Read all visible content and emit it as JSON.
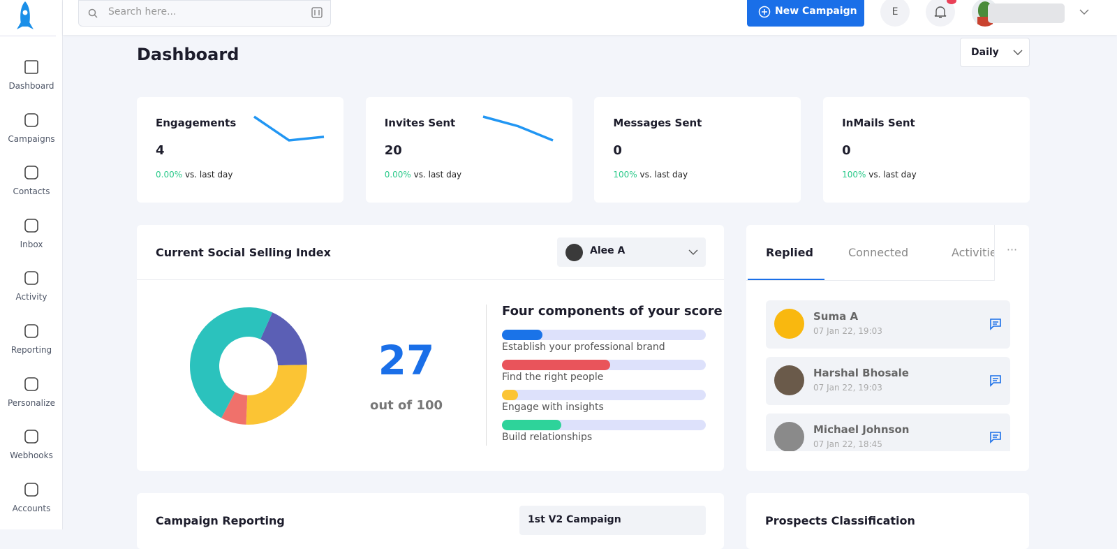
{
  "sidebar": {
    "items": [
      "Dashboard",
      "Campaigns",
      "Contacts",
      "Inbox",
      "Activity",
      "Reporting",
      "Personalize",
      "Webhooks",
      "Accounts"
    ]
  },
  "header": {
    "search_placeholder": "Search here...",
    "new_campaign": "New Campaign",
    "avatar_letter": "E"
  },
  "page": {
    "title": "Dashboard",
    "period": "Daily"
  },
  "stats": [
    {
      "title": "Engagements",
      "value": 4,
      "change": "0.00%",
      "change_label": "vs. last day",
      "trend": [
        3,
        1,
        1.3
      ]
    },
    {
      "title": "Invites Sent",
      "value": 20,
      "change": "0.00%",
      "change_label": "vs. last day",
      "trend": [
        3,
        2.2,
        1
      ]
    },
    {
      "title": "Messages Sent",
      "value": 0,
      "change": "100%",
      "change_label": "vs. last day"
    },
    {
      "title": "InMails Sent",
      "value": 0,
      "change": "100%",
      "change_label": "vs. last day"
    }
  ],
  "ssi": {
    "title": "Current Social Selling Index",
    "profile": "Alee A",
    "score": 27,
    "score_label": "out of 100",
    "donut": [
      {
        "color": "#5b5fb5",
        "value": 18
      },
      {
        "color": "#fbc434",
        "value": 26
      },
      {
        "color": "#f0716b",
        "value": 7
      },
      {
        "color": "#2bc2bd",
        "value": 49
      }
    ],
    "components_title": "Four components of your score",
    "components": [
      {
        "name": "Establish your professional brand",
        "color": "#1a73e8",
        "value": 20
      },
      {
        "name": "Find the right people",
        "color": "#e9545b",
        "value": 53
      },
      {
        "name": "Engage with insights",
        "color": "#fbc434",
        "value": 8
      },
      {
        "name": "Build relationships",
        "color": "#2ed39a",
        "value": 29
      }
    ]
  },
  "activity": {
    "tabs": [
      "Replied",
      "Connected",
      "Activities"
    ],
    "items": [
      {
        "name": "Suma A",
        "time": "07 Jan 22, 19:03"
      },
      {
        "name": "Harshal Bhosale",
        "time": "07 Jan 22, 19:03"
      },
      {
        "name": "Michael Johnson",
        "time": "07 Jan 22, 18:45"
      }
    ]
  },
  "bottom": {
    "left_title": "Campaign Reporting",
    "left_select": "1st V2 Campaign",
    "right_title": "Prospects Classification"
  }
}
